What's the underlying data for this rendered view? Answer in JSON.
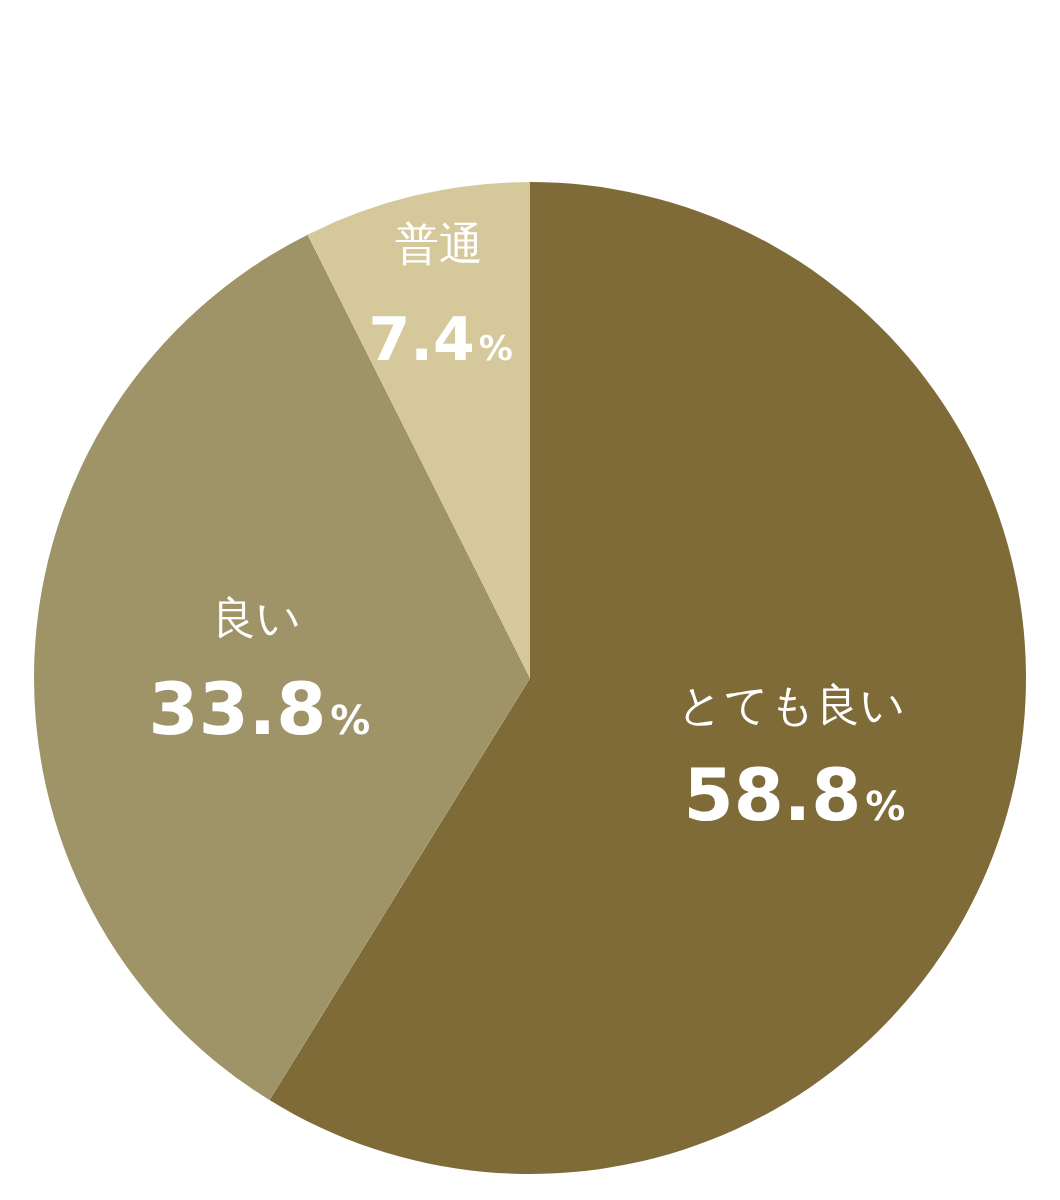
{
  "chart_data": {
    "type": "pie",
    "categories": [
      "とても良い",
      "良い",
      "普通"
    ],
    "values": [
      58.8,
      33.8,
      7.4
    ],
    "colors": [
      "#7f6b38",
      "#9f9468",
      "#d5c99b"
    ],
    "value_labels": [
      "58.8%",
      "33.8%",
      "7.4%"
    ],
    "legend": false
  }
}
